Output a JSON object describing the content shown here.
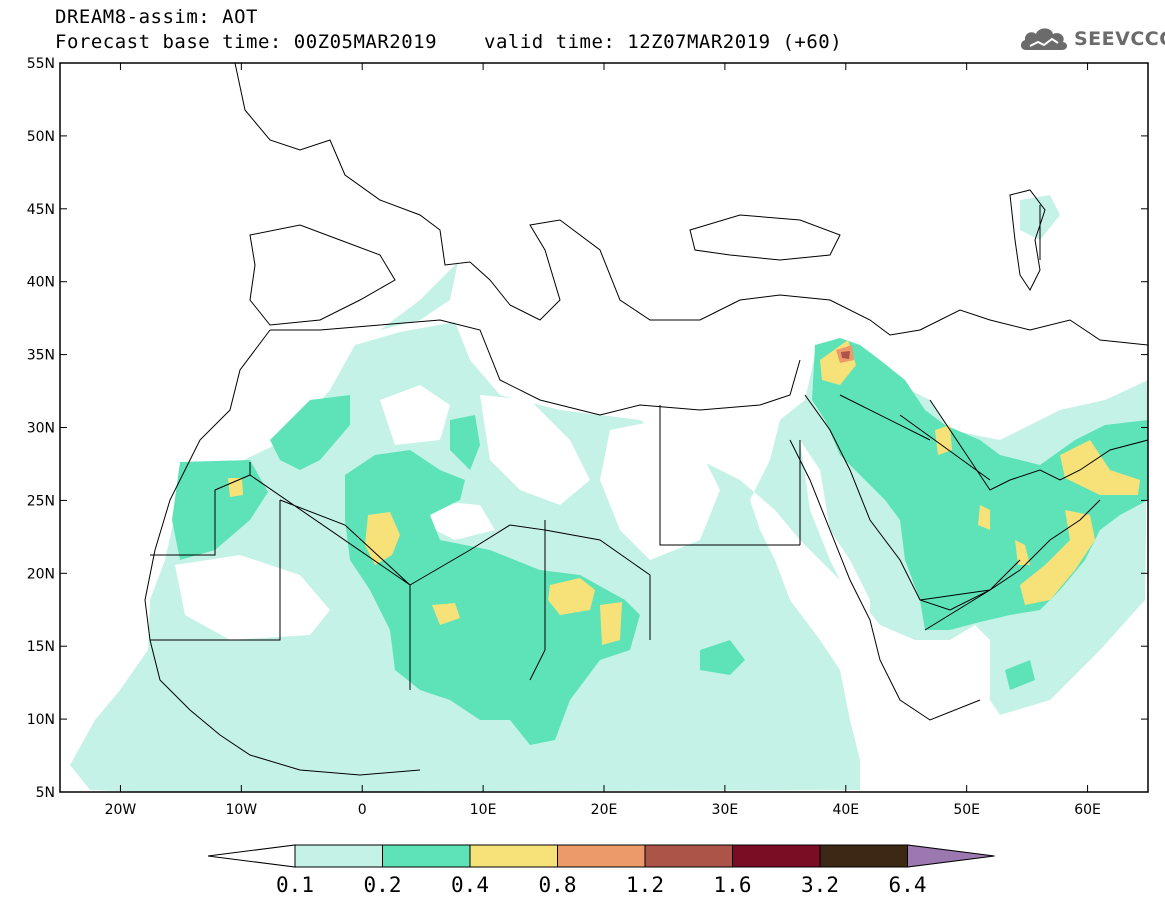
{
  "header": {
    "title": "DREAM8-assim: AOT",
    "base_time": "Forecast base time: 00Z05MAR2019",
    "valid_time": "valid time: 12Z07MAR2019 (+60)",
    "logo_text": "SEEVCCC",
    "logo_icon": "cloud-icon"
  },
  "map": {
    "lon_range": [
      -25,
      65
    ],
    "lat_range": [
      5,
      55
    ],
    "lat_labels": [
      "55N",
      "50N",
      "45N",
      "40N",
      "35N",
      "30N",
      "25N",
      "20N",
      "15N",
      "10N",
      "5N"
    ],
    "lat_values": [
      55,
      50,
      45,
      40,
      35,
      30,
      25,
      20,
      15,
      10,
      5
    ],
    "lon_labels": [
      "20W",
      "10W",
      "0",
      "10E",
      "20E",
      "30E",
      "40E",
      "50E",
      "60E"
    ],
    "lon_values": [
      -20,
      -10,
      0,
      10,
      20,
      30,
      40,
      50,
      60
    ]
  },
  "colorbar": {
    "labels": [
      "0.1",
      "0.2",
      "0.4",
      "0.8",
      "1.2",
      "1.6",
      "3.2",
      "6.4"
    ],
    "colors": [
      "#c4f2e6",
      "#5ee3b8",
      "#f7e27a",
      "#ed9a6b",
      "#ab5447",
      "#7a0c24",
      "#3d2715",
      "#9c78b0"
    ],
    "under_color": "#ffffff"
  }
}
